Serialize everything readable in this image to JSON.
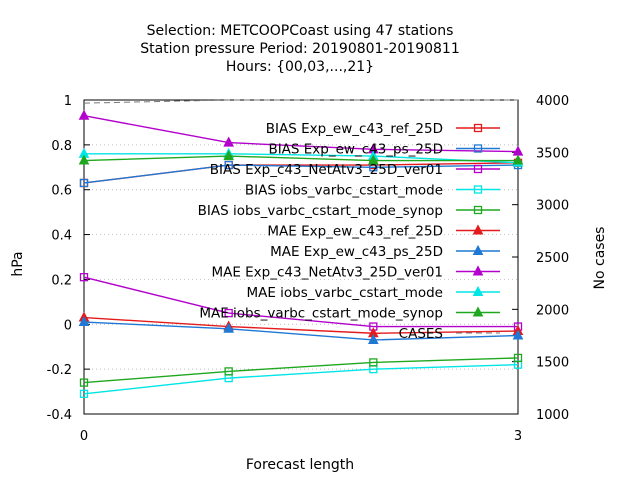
{
  "chart_data": {
    "type": "line",
    "title_lines": [
      "Selection: METCOOPCoast using    47 stations",
      "Station pressure   Period: 20190801-20190811",
      "Hours: {00,03,...,21}"
    ],
    "xlabel": "Forecast length",
    "ylabel": "hPa",
    "y2label": "No cases",
    "x": [
      0,
      3
    ],
    "xticks": [
      "0",
      "3"
    ],
    "xlim": [
      0,
      3
    ],
    "ylim": [
      -0.4,
      1.0
    ],
    "yticks": [
      "-0.4",
      "-0.2",
      "0",
      "0.2",
      "0.4",
      "0.6",
      "0.8",
      "1"
    ],
    "y2lim": [
      1000,
      4000
    ],
    "y2ticks": [
      "1000",
      "1500",
      "2000",
      "2500",
      "3000",
      "3500",
      "4000"
    ],
    "grid": true,
    "legend_position": "right",
    "series": [
      {
        "name": "BIAS Exp_ew_c43_ref_25D",
        "color": "#e41a1c",
        "marker": "square-open",
        "x": [
          0,
          1,
          2,
          3
        ],
        "values": [
          0.63,
          0.71,
          0.71,
          0.72
        ]
      },
      {
        "name": "BIAS Exp_ew_c43_ps_25D",
        "color": "#1f78d4",
        "marker": "square-open",
        "x": [
          0,
          1,
          2,
          3
        ],
        "values": [
          0.63,
          0.71,
          0.7,
          0.71
        ]
      },
      {
        "name": "BIAS Exp_c43_NetAtv3_25D_ver01",
        "color": "#b300cc",
        "marker": "square-open",
        "x": [
          0,
          1,
          2,
          3
        ],
        "values": [
          0.21,
          0.05,
          -0.01,
          -0.01
        ]
      },
      {
        "name": "BIAS iobs_varbc_cstart_mode",
        "color": "#00e5e5",
        "marker": "square-open",
        "x": [
          0,
          1,
          2,
          3
        ],
        "values": [
          -0.31,
          -0.24,
          -0.2,
          -0.18
        ]
      },
      {
        "name": "BIAS iobs_varbc_cstart_mode_synop",
        "color": "#1fa81f",
        "marker": "square-open",
        "x": [
          0,
          1,
          2,
          3
        ],
        "values": [
          -0.26,
          -0.21,
          -0.17,
          -0.15
        ]
      },
      {
        "name": "MAE Exp_ew_c43_ref_25D",
        "color": "#e41a1c",
        "marker": "triangle",
        "x": [
          0,
          1,
          2,
          3
        ],
        "values": [
          0.03,
          -0.01,
          -0.04,
          -0.03
        ]
      },
      {
        "name": "MAE Exp_ew_c43_ps_25D",
        "color": "#1f78d4",
        "marker": "triangle",
        "x": [
          0,
          1,
          2,
          3
        ],
        "values": [
          0.01,
          -0.02,
          -0.07,
          -0.05
        ]
      },
      {
        "name": "MAE Exp_c43_NetAtv3_25D_ver01",
        "color": "#b300cc",
        "marker": "triangle",
        "x": [
          0,
          1,
          2,
          3
        ],
        "values": [
          0.93,
          0.81,
          0.78,
          0.77
        ]
      },
      {
        "name": "MAE iobs_varbc_cstart_mode",
        "color": "#00e5e5",
        "marker": "triangle",
        "x": [
          0,
          1,
          2,
          3
        ],
        "values": [
          0.76,
          0.76,
          0.75,
          0.72
        ]
      },
      {
        "name": "MAE iobs_varbc_cstart_mode_synop",
        "color": "#1fa81f",
        "marker": "triangle",
        "x": [
          0,
          1,
          2,
          3
        ],
        "values": [
          0.73,
          0.75,
          0.73,
          0.73
        ]
      }
    ],
    "cases": {
      "name": "CASES",
      "color": "#777777",
      "axis": "y2",
      "x": [
        0,
        1,
        2,
        3
      ],
      "values": [
        3970,
        4000,
        4000,
        4000
      ]
    }
  }
}
